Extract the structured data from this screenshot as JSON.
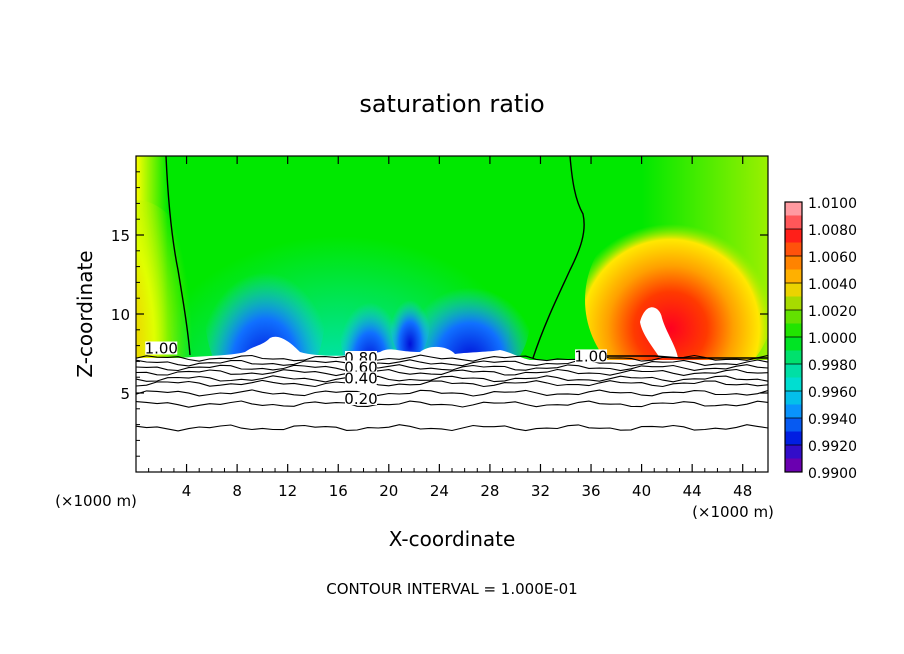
{
  "chart_data": {
    "type": "heatmap",
    "title": "saturation ratio",
    "xlabel": "X-coordinate",
    "ylabel": "Z-coordinate",
    "x_unit_left": "(×1000 m)",
    "x_unit_right": "(×1000 m)",
    "xlim": [
      0,
      50
    ],
    "ylim": [
      0,
      20
    ],
    "x_ticks": [
      4,
      8,
      12,
      16,
      20,
      24,
      28,
      32,
      36,
      40,
      44,
      48
    ],
    "x_tick_labels": [
      "4",
      "8",
      "12",
      "16",
      "20",
      "24",
      "28",
      "32",
      "36",
      "40",
      "44",
      "48"
    ],
    "y_ticks": [
      5,
      10,
      15
    ],
    "y_tick_labels": [
      "5",
      "10",
      "15"
    ],
    "colorbar": {
      "min": 0.99,
      "max": 1.01,
      "labels": [
        "1.0100",
        "1.0080",
        "1.0060",
        "1.0040",
        "1.0020",
        "1.0000",
        "0.9980",
        "0.9960",
        "0.9940",
        "0.9920",
        "0.9900"
      ],
      "colors": [
        "#ff9aa0",
        "#ff1a1a",
        "#ff7a00",
        "#ffd000",
        "#7ee000",
        "#00e600",
        "#00e08a",
        "#00dede",
        "#0a8aff",
        "#0018e0",
        "#6a00b0"
      ]
    },
    "contour_labels": [
      {
        "text": "1.00",
        "x": 2.0,
        "z": 7.5
      },
      {
        "text": "0.80",
        "x": 17.8,
        "z": 6.9
      },
      {
        "text": "0.60",
        "x": 17.8,
        "z": 6.3
      },
      {
        "text": "0.40",
        "x": 17.8,
        "z": 5.6
      },
      {
        "text": "0.20",
        "x": 17.8,
        "z": 4.3
      },
      {
        "text": "1.00",
        "x": 36.0,
        "z": 7.0
      }
    ],
    "contour_lines_z": [
      7.2,
      6.9,
      6.6,
      6.3,
      5.9,
      5.6,
      5.0,
      4.3,
      2.8
    ],
    "grid": false,
    "legend": "colorbar-right",
    "footer": "CONTOUR INTERVAL = 1.000E-01"
  }
}
